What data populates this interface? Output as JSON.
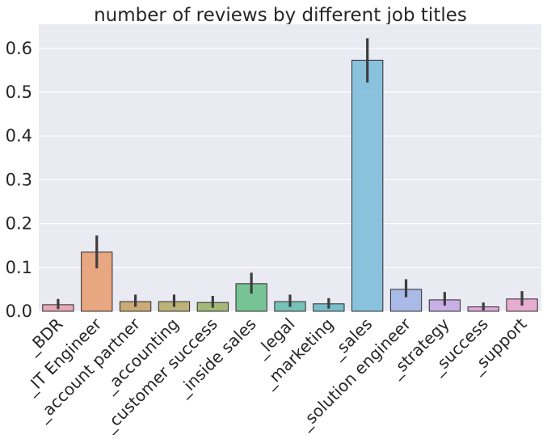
{
  "chart_data": {
    "type": "bar",
    "title": "number of reviews by different job titles",
    "xlabel": "",
    "ylabel": "",
    "categories": [
      "_BDR",
      "_IT Engineer",
      "_account partner",
      "_accounting",
      "_customer success",
      "_inside sales",
      "_legal",
      "_marketing",
      "_sales",
      "_solution engineer",
      "_strategy",
      "_success",
      "_support"
    ],
    "values": [
      0.015,
      0.135,
      0.022,
      0.022,
      0.02,
      0.063,
      0.022,
      0.017,
      0.573,
      0.05,
      0.026,
      0.01,
      0.028
    ],
    "error_low": [
      0.005,
      0.098,
      0.01,
      0.01,
      0.008,
      0.04,
      0.01,
      0.006,
      0.522,
      0.032,
      0.013,
      0.002,
      0.013
    ],
    "error_high": [
      0.028,
      0.173,
      0.038,
      0.038,
      0.035,
      0.088,
      0.038,
      0.03,
      0.623,
      0.073,
      0.044,
      0.02,
      0.046
    ],
    "colors": [
      "#e8a1b3",
      "#e8a074",
      "#c8a46a",
      "#b8ad6a",
      "#9cb46a",
      "#6cbf8c",
      "#6cbcb0",
      "#6cb8c6",
      "#7fbedb",
      "#a2b5e6",
      "#c4a9e4",
      "#e0a0dc",
      "#e6a6cd"
    ],
    "yticks": [
      "0.0",
      "0.1",
      "0.2",
      "0.3",
      "0.4",
      "0.5",
      "0.6"
    ],
    "ylim": [
      0,
      0.655
    ],
    "grid": true,
    "background": "#eaeaf2",
    "error_bar_color": "#3d3d3d",
    "bar_edge_color": "#2b2b2b"
  }
}
